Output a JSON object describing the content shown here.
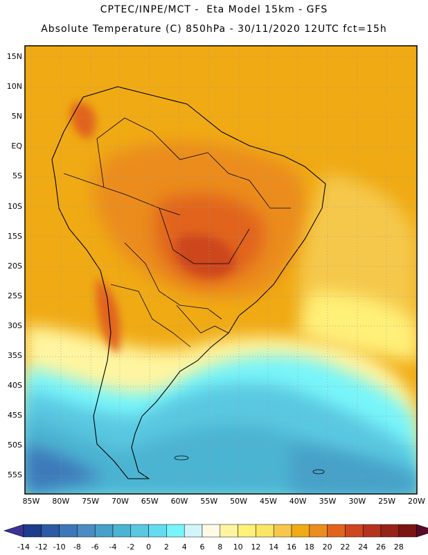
{
  "header": {
    "title_line1": "CPTEC/INPE/MCT -  Eta Model 15km - GFS",
    "title_line2": "Absolute Temperature (C) 850hPa - 30/11/2020 12UTC fct=15h"
  },
  "map": {
    "region": "South America",
    "lat_labels": [
      "15N",
      "10N",
      "5N",
      "EQ",
      "5S",
      "10S",
      "15S",
      "20S",
      "25S",
      "30S",
      "35S",
      "40S",
      "45S",
      "50S",
      "55S"
    ],
    "lon_labels": [
      "85W",
      "80W",
      "75W",
      "70W",
      "65W",
      "60W",
      "55W",
      "50W",
      "45W",
      "40W",
      "35W",
      "30W",
      "25W",
      "20W"
    ]
  },
  "legend": {
    "labels": [
      "-14",
      "-12",
      "-10",
      "-8",
      "-6",
      "-4",
      "-2",
      "0",
      "2",
      "4",
      "6",
      "8",
      "10",
      "12",
      "14",
      "16",
      "18",
      "20",
      "22",
      "24",
      "26",
      "28"
    ],
    "colors": [
      "#1e3c8c",
      "#2d5aa5",
      "#3c78b9",
      "#4b8cc3",
      "#46a0c8",
      "#4bb4d2",
      "#5ac8e1",
      "#64dcf0",
      "#78f5fa",
      "#d2f5fa",
      "#fffae6",
      "#fff5a0",
      "#fff078",
      "#fae664",
      "#f5c84b",
      "#f0aa14",
      "#eb8c1e",
      "#e1641e",
      "#cd461e",
      "#b4321e",
      "#962319",
      "#7d1414"
    ],
    "low_arrow_color": "#3c3296",
    "high_arrow_color": "#5a0a28"
  }
}
